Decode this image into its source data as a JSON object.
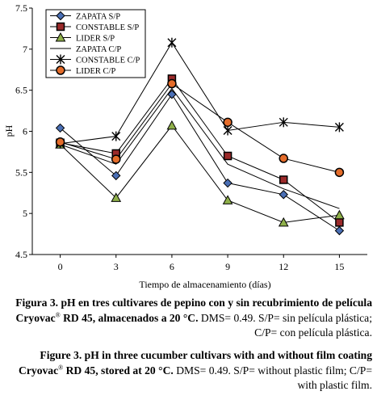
{
  "chart_data": {
    "type": "line",
    "x": [
      0,
      3,
      6,
      9,
      12,
      15
    ],
    "categories": [
      "0",
      "3",
      "6",
      "9",
      "12",
      "15"
    ],
    "ylabel": "pH",
    "xlabel": "Tiempo de almacenamiento (días)",
    "ylim": [
      4.5,
      7.5
    ],
    "yticks": [
      "4.5",
      "5",
      "5.5",
      "6",
      "6.5",
      "7",
      "7.5"
    ],
    "grid": false,
    "legend_position": "top-left",
    "series": [
      {
        "name": "ZAPATA S/P",
        "marker": "diamond",
        "fill": "#4a6fb5",
        "values": [
          6.04,
          5.46,
          6.45,
          5.37,
          5.23,
          4.79
        ]
      },
      {
        "name": "CONSTABLE S/P",
        "marker": "square",
        "fill": "#9b2a2a",
        "values": [
          5.86,
          5.73,
          6.64,
          5.7,
          5.41,
          4.89
        ]
      },
      {
        "name": "LIDER S/P",
        "marker": "triangle",
        "fill": "#8fb04a",
        "values": [
          5.84,
          5.19,
          6.07,
          5.16,
          4.89,
          4.98
        ]
      },
      {
        "name": "ZAPATA C/P",
        "marker": "none",
        "fill": "#000000",
        "values": [
          5.84,
          5.6,
          6.52,
          5.6,
          5.3,
          5.06
        ]
      },
      {
        "name": "CONSTABLE C/P",
        "marker": "star",
        "fill": "#000000",
        "values": [
          5.85,
          5.94,
          7.08,
          6.01,
          6.11,
          6.05
        ]
      },
      {
        "name": "LIDER C/P",
        "marker": "circle",
        "fill": "#e46c2a",
        "values": [
          5.87,
          5.66,
          6.58,
          6.11,
          5.67,
          5.5
        ]
      }
    ]
  },
  "caption_es": {
    "bold_prefix": "Figura 3.",
    "bold_text": " pH en tres cultivares de pepino con y sin recubrimiento de película Cryovac",
    "superscript": "®",
    "bold_tail": " RD 45, almacenados a 20 °C.",
    "normal_text": " DMS= 0.49. S/P= sin película plástica; C/P= con película plástica."
  },
  "caption_en": {
    "bold_prefix": "Figure 3.",
    "bold_text": " pH in three cucumber cultivars with and without film coating Cryovac",
    "superscript": "®",
    "bold_tail": " RD 45, stored at 20 °C.",
    "normal_text": " DMS= 0.49. S/P= without plastic film; C/P= with plastic film."
  }
}
